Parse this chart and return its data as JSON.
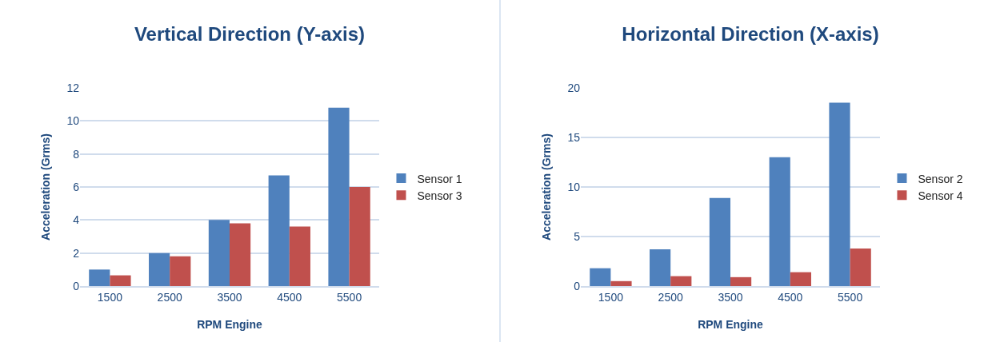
{
  "chart_data": [
    {
      "type": "bar",
      "title": "Vertical Direction (Y-axis)",
      "xlabel": "RPM Engine",
      "ylabel": "Acceleration (Grms)",
      "categories": [
        "1500",
        "2500",
        "3500",
        "4500",
        "5500"
      ],
      "series": [
        {
          "name": "Sensor 1",
          "color": "#4f81bd",
          "values": [
            1.0,
            2.0,
            4.0,
            6.7,
            10.8
          ]
        },
        {
          "name": "Sensor 3",
          "color": "#c0504d",
          "values": [
            0.65,
            1.8,
            3.8,
            3.6,
            6.0
          ]
        }
      ],
      "ylim": [
        0,
        12
      ],
      "yticks": [
        0,
        2,
        4,
        6,
        8,
        10,
        12
      ],
      "grid": "y",
      "legend": "right"
    },
    {
      "type": "bar",
      "title": "Horizontal Direction (X-axis)",
      "xlabel": "RPM Engine",
      "ylabel": "Acceleration (Grms)",
      "categories": [
        "1500",
        "2500",
        "3500",
        "4500",
        "5500"
      ],
      "series": [
        {
          "name": "Sensor 2",
          "color": "#4f81bd",
          "values": [
            1.8,
            3.7,
            8.9,
            13.0,
            18.5
          ]
        },
        {
          "name": "Sensor 4",
          "color": "#c0504d",
          "values": [
            0.5,
            1.0,
            0.9,
            1.4,
            3.8
          ]
        }
      ],
      "ylim": [
        0,
        20
      ],
      "yticks": [
        0,
        5,
        10,
        15,
        20
      ],
      "grid": "y",
      "legend": "right"
    }
  ]
}
